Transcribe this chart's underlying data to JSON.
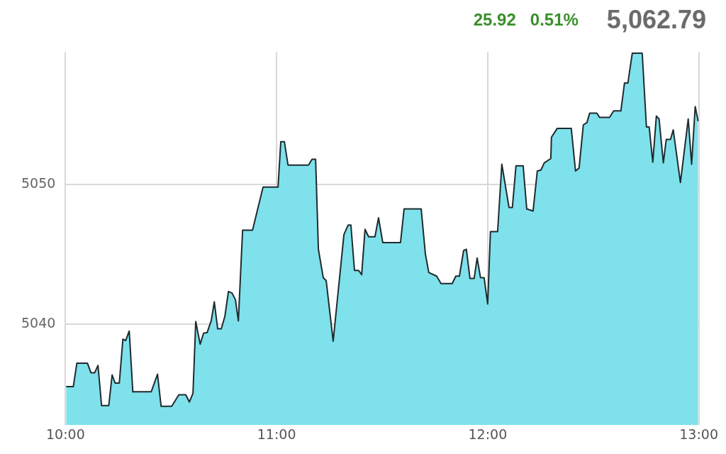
{
  "chart_data": {
    "type": "area",
    "annotations": [
      "25.92",
      "0.51%",
      "5,062.79"
    ],
    "xlim": [
      10,
      13
    ],
    "xticks": [
      {
        "value": 10,
        "label": "10:00"
      },
      {
        "value": 11,
        "label": "11:00"
      },
      {
        "value": 12,
        "label": "12:00"
      },
      {
        "value": 13,
        "label": "13:00"
      }
    ],
    "ylim": [
      5032.8,
      5059.5
    ],
    "yticks": [
      5040,
      5050
    ],
    "grid": true,
    "marker": "none",
    "x": [
      10.003,
      10.037,
      10.054,
      10.104,
      10.121,
      10.138,
      10.154,
      10.171,
      10.205,
      10.221,
      10.235,
      10.255,
      10.272,
      10.285,
      10.302,
      10.319,
      10.406,
      10.436,
      10.453,
      10.503,
      10.537,
      10.57,
      10.587,
      10.604,
      10.617,
      10.638,
      10.654,
      10.671,
      10.691,
      10.705,
      10.721,
      10.738,
      10.755,
      10.772,
      10.789,
      10.805,
      10.819,
      10.839,
      10.886,
      10.936,
      11.007,
      11.02,
      11.037,
      11.054,
      11.151,
      11.168,
      11.185,
      11.198,
      11.221,
      11.235,
      11.268,
      11.319,
      11.339,
      11.352,
      11.369,
      11.389,
      11.403,
      11.419,
      11.436,
      11.466,
      11.483,
      11.503,
      11.587,
      11.604,
      11.685,
      11.705,
      11.721,
      11.758,
      11.779,
      11.832,
      11.849,
      11.866,
      11.886,
      11.899,
      11.916,
      11.936,
      11.95,
      11.966,
      11.983,
      12.0,
      12.013,
      12.047,
      12.067,
      12.101,
      12.117,
      12.134,
      12.168,
      12.185,
      12.215,
      12.235,
      12.252,
      12.268,
      12.299,
      12.302,
      12.329,
      12.396,
      12.416,
      12.433,
      12.453,
      12.47,
      12.483,
      12.517,
      12.53,
      12.577,
      12.597,
      12.631,
      12.648,
      12.664,
      12.685,
      12.732,
      12.752,
      12.765,
      12.782,
      12.799,
      12.812,
      12.832,
      12.846,
      12.866,
      12.879,
      12.913,
      12.95,
      12.966,
      12.983,
      12.997
    ],
    "series": [
      {
        "color": "#7fe1eb",
        "values": [
          5035.55,
          5035.55,
          5037.23,
          5037.23,
          5036.54,
          5036.54,
          5037.07,
          5034.19,
          5034.19,
          5036.39,
          5035.81,
          5035.81,
          5038.95,
          5038.85,
          5039.53,
          5035.18,
          5035.18,
          5036.44,
          5034.14,
          5034.14,
          5034.97,
          5034.97,
          5034.45,
          5035.08,
          5040.21,
          5038.59,
          5039.37,
          5039.42,
          5040.31,
          5041.62,
          5039.69,
          5039.69,
          5040.58,
          5042.36,
          5042.25,
          5041.78,
          5040.26,
          5046.75,
          5046.75,
          5049.84,
          5049.84,
          5053.09,
          5053.09,
          5051.41,
          5051.41,
          5051.83,
          5051.83,
          5045.39,
          5043.35,
          5043.14,
          5038.8,
          5046.44,
          5047.12,
          5047.12,
          5043.87,
          5043.87,
          5043.56,
          5046.81,
          5046.28,
          5046.28,
          5047.64,
          5045.86,
          5045.86,
          5048.27,
          5048.27,
          5045.03,
          5043.72,
          5043.46,
          5042.93,
          5042.93,
          5043.46,
          5043.46,
          5045.29,
          5045.39,
          5043.3,
          5043.3,
          5044.76,
          5043.35,
          5043.35,
          5041.47,
          5046.65,
          5046.65,
          5051.47,
          5048.38,
          5048.38,
          5051.36,
          5051.36,
          5048.27,
          5048.12,
          5050.99,
          5051.05,
          5051.57,
          5051.88,
          5053.4,
          5054.03,
          5054.03,
          5050.99,
          5051.2,
          5054.29,
          5054.45,
          5055.13,
          5055.13,
          5054.82,
          5054.82,
          5055.29,
          5055.29,
          5057.28,
          5057.28,
          5059.42,
          5059.42,
          5054.14,
          5054.14,
          5051.62,
          5054.92,
          5054.71,
          5051.57,
          5053.25,
          5053.25,
          5053.93,
          5050.16,
          5054.71,
          5051.47,
          5055.6,
          5054.55
        ]
      }
    ]
  }
}
